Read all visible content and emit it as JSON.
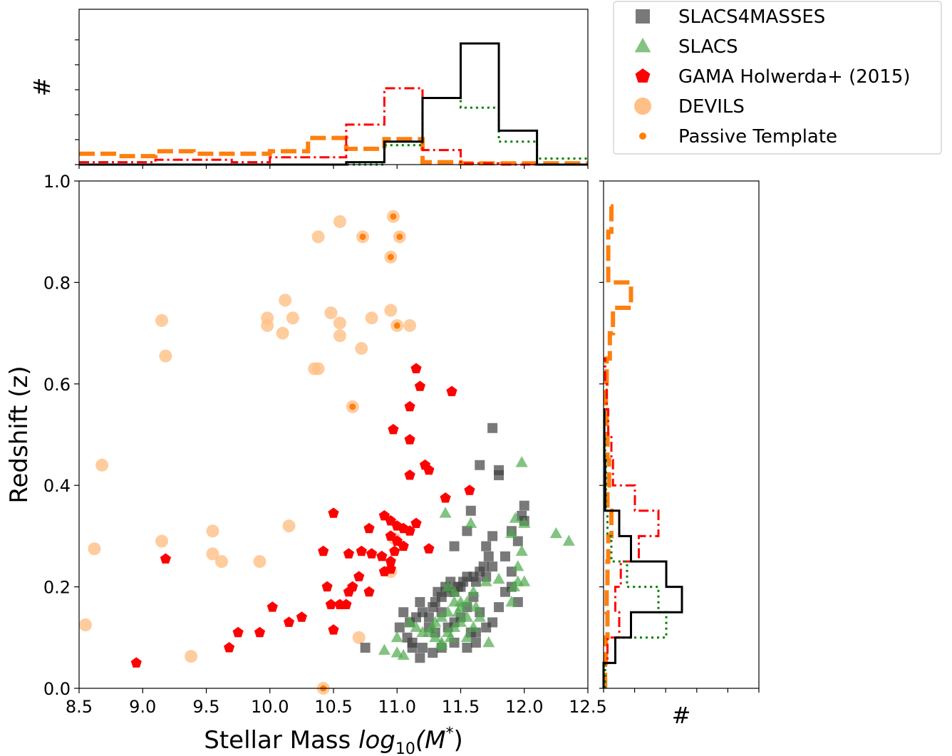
{
  "colors": {
    "slacs4masses": "#404040",
    "slacs": "#4daa4d",
    "gama": "#ff0000",
    "devils": "#ffbf86",
    "passive": "#ff7f0e",
    "hist_black": "#000000",
    "hist_green": "#008000",
    "hist_red": "#ff0000",
    "hist_orange": "#ff7f0e"
  },
  "chart_data": {
    "type": "scatter",
    "xlabel_prefix": "Stellar Mass ",
    "xlabel_math": "log",
    "xlabel_sub": "10",
    "xlabel_arg": "(M",
    "xlabel_sup": "*",
    "xlabel_close": ")",
    "ylabel": "Redshift (z)",
    "top_hist_ylabel": "#",
    "right_hist_xlabel": "#",
    "xlim": [
      8.5,
      12.5
    ],
    "ylim": [
      0.0,
      1.0
    ],
    "xticks": [
      "8.5",
      "9.0",
      "9.5",
      "10.0",
      "10.5",
      "11.0",
      "11.5",
      "12.0",
      "12.5"
    ],
    "yticks": [
      "0.0",
      "0.2",
      "0.4",
      "0.6",
      "0.8",
      "1.0"
    ],
    "legend": {
      "placement": "top-right",
      "entries": [
        "SLACS4MASSES",
        "SLACS",
        "GAMA Holwerda+ (2015)",
        "DEVILS",
        "Passive Template"
      ]
    },
    "series": [
      {
        "name": "SLACS4MASSES",
        "marker": "square",
        "points": [
          [
            11.75,
            0.513
          ],
          [
            11.65,
            0.44
          ],
          [
            11.8,
            0.42
          ],
          [
            11.8,
            0.43
          ],
          [
            12.0,
            0.36
          ],
          [
            11.98,
            0.34
          ],
          [
            12.0,
            0.33
          ],
          [
            11.58,
            0.35
          ],
          [
            11.55,
            0.31
          ],
          [
            11.9,
            0.31
          ],
          [
            11.75,
            0.3
          ],
          [
            11.7,
            0.28
          ],
          [
            11.45,
            0.28
          ],
          [
            11.95,
            0.29
          ],
          [
            11.85,
            0.26
          ],
          [
            11.9,
            0.23
          ],
          [
            11.75,
            0.24
          ],
          [
            11.7,
            0.22
          ],
          [
            11.68,
            0.24
          ],
          [
            11.65,
            0.23
          ],
          [
            11.62,
            0.21
          ],
          [
            11.6,
            0.22
          ],
          [
            11.55,
            0.22
          ],
          [
            11.52,
            0.21
          ],
          [
            11.5,
            0.2
          ],
          [
            11.48,
            0.2
          ],
          [
            11.45,
            0.19
          ],
          [
            11.42,
            0.21
          ],
          [
            11.4,
            0.19
          ],
          [
            11.38,
            0.2
          ],
          [
            11.35,
            0.18
          ],
          [
            11.32,
            0.19
          ],
          [
            11.3,
            0.17
          ],
          [
            11.28,
            0.16
          ],
          [
            11.25,
            0.14
          ],
          [
            11.2,
            0.15
          ],
          [
            11.15,
            0.14
          ],
          [
            11.1,
            0.13
          ],
          [
            11.05,
            0.15
          ],
          [
            11.02,
            0.12
          ],
          [
            11.08,
            0.1
          ],
          [
            11.12,
            0.09
          ],
          [
            11.2,
            0.08
          ],
          [
            11.28,
            0.07
          ],
          [
            11.35,
            0.08
          ],
          [
            11.45,
            0.09
          ],
          [
            11.55,
            0.08
          ],
          [
            11.62,
            0.11
          ],
          [
            11.7,
            0.12
          ],
          [
            11.75,
            0.13
          ],
          [
            11.8,
            0.16
          ],
          [
            11.85,
            0.19
          ],
          [
            11.9,
            0.2
          ],
          [
            11.95,
            0.17
          ],
          [
            11.55,
            0.16
          ],
          [
            11.6,
            0.18
          ],
          [
            11.65,
            0.15
          ],
          [
            11.5,
            0.14
          ],
          [
            11.45,
            0.13
          ],
          [
            11.4,
            0.12
          ],
          [
            11.35,
            0.15
          ],
          [
            11.3,
            0.11
          ],
          [
            11.25,
            0.12
          ],
          [
            11.18,
            0.17
          ],
          [
            11.12,
            0.08
          ],
          [
            11.18,
            0.06
          ],
          [
            10.75,
            0.08
          ],
          [
            11.72,
            0.26
          ],
          [
            11.62,
            0.09
          ],
          [
            11.58,
            0.11
          ]
        ]
      },
      {
        "name": "SLACS",
        "marker": "triangle",
        "points": [
          [
            11.98,
            0.445
          ],
          [
            11.38,
            0.345
          ],
          [
            11.58,
            0.325
          ],
          [
            11.93,
            0.335
          ],
          [
            12.0,
            0.325
          ],
          [
            12.25,
            0.305
          ],
          [
            12.35,
            0.29
          ],
          [
            11.9,
            0.305
          ],
          [
            11.98,
            0.27
          ],
          [
            11.95,
            0.24
          ],
          [
            11.95,
            0.21
          ],
          [
            12.0,
            0.21
          ],
          [
            11.92,
            0.2
          ],
          [
            11.9,
            0.17
          ],
          [
            11.8,
            0.215
          ],
          [
            11.7,
            0.21
          ],
          [
            11.6,
            0.19
          ],
          [
            11.55,
            0.17
          ],
          [
            11.5,
            0.16
          ],
          [
            11.48,
            0.15
          ],
          [
            11.45,
            0.17
          ],
          [
            11.4,
            0.15
          ],
          [
            11.35,
            0.14
          ],
          [
            11.3,
            0.13
          ],
          [
            11.28,
            0.12
          ],
          [
            11.25,
            0.11
          ],
          [
            11.3,
            0.1
          ],
          [
            11.35,
            0.09
          ],
          [
            11.4,
            0.11
          ],
          [
            11.45,
            0.12
          ],
          [
            11.5,
            0.13
          ],
          [
            11.55,
            0.14
          ],
          [
            11.6,
            0.12
          ],
          [
            11.65,
            0.14
          ],
          [
            11.2,
            0.11
          ],
          [
            11.15,
            0.12
          ],
          [
            11.1,
            0.13
          ],
          [
            11.0,
            0.1
          ],
          [
            10.9,
            0.075
          ],
          [
            11.0,
            0.07
          ],
          [
            11.05,
            0.065
          ],
          [
            11.35,
            0.085
          ],
          [
            11.42,
            0.1
          ],
          [
            11.55,
            0.1
          ],
          [
            11.72,
            0.09
          ],
          [
            11.5,
            0.17
          ],
          [
            11.45,
            0.19
          ],
          [
            11.4,
            0.2
          ],
          [
            11.62,
            0.16
          ]
        ]
      },
      {
        "name": "GAMA Holwerda+ (2015)",
        "marker": "pentagon",
        "points": [
          [
            11.15,
            0.63
          ],
          [
            11.18,
            0.595
          ],
          [
            11.43,
            0.585
          ],
          [
            11.1,
            0.555
          ],
          [
            10.97,
            0.51
          ],
          [
            11.1,
            0.49
          ],
          [
            11.22,
            0.44
          ],
          [
            11.25,
            0.43
          ],
          [
            11.1,
            0.42
          ],
          [
            11.57,
            0.39
          ],
          [
            11.38,
            0.375
          ],
          [
            10.5,
            0.345
          ],
          [
            10.9,
            0.34
          ],
          [
            10.95,
            0.33
          ],
          [
            11.15,
            0.325
          ],
          [
            11.0,
            0.32
          ],
          [
            11.05,
            0.315
          ],
          [
            10.78,
            0.315
          ],
          [
            10.95,
            0.3
          ],
          [
            11.1,
            0.31
          ],
          [
            11.0,
            0.29
          ],
          [
            11.05,
            0.28
          ],
          [
            10.98,
            0.27
          ],
          [
            10.62,
            0.265
          ],
          [
            10.72,
            0.27
          ],
          [
            10.8,
            0.265
          ],
          [
            10.42,
            0.27
          ],
          [
            10.88,
            0.26
          ],
          [
            11.25,
            0.275
          ],
          [
            10.95,
            0.25
          ],
          [
            10.9,
            0.23
          ],
          [
            10.7,
            0.22
          ],
          [
            10.65,
            0.2
          ],
          [
            10.62,
            0.19
          ],
          [
            10.78,
            0.19
          ],
          [
            10.45,
            0.2
          ],
          [
            10.55,
            0.165
          ],
          [
            10.48,
            0.165
          ],
          [
            10.6,
            0.165
          ],
          [
            10.02,
            0.16
          ],
          [
            10.25,
            0.14
          ],
          [
            10.15,
            0.13
          ],
          [
            10.5,
            0.115
          ],
          [
            9.92,
            0.11
          ],
          [
            9.75,
            0.11
          ],
          [
            9.68,
            0.08
          ],
          [
            8.95,
            0.05
          ],
          [
            9.18,
            0.255
          ],
          [
            10.95,
            0.235
          ]
        ]
      },
      {
        "name": "DEVILS",
        "marker": "circle",
        "points": [
          [
            10.97,
            0.93
          ],
          [
            10.55,
            0.92
          ],
          [
            10.73,
            0.89
          ],
          [
            11.02,
            0.89
          ],
          [
            10.38,
            0.89
          ],
          [
            10.95,
            0.85
          ],
          [
            10.12,
            0.765
          ],
          [
            10.95,
            0.745
          ],
          [
            9.98,
            0.73
          ],
          [
            10.18,
            0.73
          ],
          [
            10.48,
            0.74
          ],
          [
            10.8,
            0.73
          ],
          [
            9.15,
            0.725
          ],
          [
            10.55,
            0.72
          ],
          [
            9.98,
            0.715
          ],
          [
            11.0,
            0.715
          ],
          [
            11.1,
            0.715
          ],
          [
            10.1,
            0.7
          ],
          [
            10.55,
            0.695
          ],
          [
            10.72,
            0.67
          ],
          [
            9.18,
            0.655
          ],
          [
            10.35,
            0.63
          ],
          [
            10.38,
            0.63
          ],
          [
            10.65,
            0.555
          ],
          [
            8.68,
            0.44
          ],
          [
            10.15,
            0.32
          ],
          [
            9.55,
            0.31
          ],
          [
            9.15,
            0.29
          ],
          [
            10.98,
            0.295
          ],
          [
            8.62,
            0.275
          ],
          [
            9.55,
            0.265
          ],
          [
            9.62,
            0.25
          ],
          [
            9.92,
            0.25
          ],
          [
            10.95,
            0.23
          ],
          [
            10.7,
            0.1
          ],
          [
            8.55,
            0.125
          ],
          [
            9.38,
            0.063
          ],
          [
            10.42,
            0.0
          ]
        ]
      },
      {
        "name": "Passive Template",
        "marker": "dot",
        "points": [
          [
            10.97,
            0.93
          ],
          [
            10.73,
            0.89
          ],
          [
            11.02,
            0.89
          ],
          [
            10.95,
            0.85
          ],
          [
            11.0,
            0.715
          ],
          [
            10.65,
            0.555
          ],
          [
            10.42,
            0.0
          ]
        ]
      }
    ],
    "top_histograms": [
      {
        "series": "SLACS4MASSES",
        "style": "solid",
        "edges": [
          8.5,
          8.8,
          9.1,
          9.4,
          9.7,
          10.0,
          10.3,
          10.6,
          10.9,
          11.2,
          11.5,
          11.8,
          12.1,
          12.5
        ],
        "counts": [
          0,
          0,
          0,
          0,
          0,
          0,
          0,
          0.02,
          0.19,
          0.55,
          1.0,
          0.28,
          0,
          0
        ]
      },
      {
        "series": "SLACS",
        "style": "dotted",
        "edges": [
          8.5,
          8.8,
          9.1,
          9.4,
          9.7,
          10.0,
          10.3,
          10.6,
          10.9,
          11.2,
          11.5,
          11.8,
          12.1,
          12.5
        ],
        "counts": [
          0,
          0,
          0,
          0,
          0,
          0,
          0,
          0,
          0.16,
          0.55,
          0.47,
          0.19,
          0.05,
          0.05
        ]
      },
      {
        "series": "GAMA Holwerda+ (2015)",
        "style": "dashdot",
        "edges": [
          8.5,
          8.8,
          9.1,
          9.4,
          9.7,
          10.0,
          10.3,
          10.6,
          10.9,
          11.2,
          11.5,
          11.8,
          12.1,
          12.5
        ],
        "counts": [
          0.02,
          0.02,
          0.04,
          0.04,
          0.02,
          0.06,
          0.06,
          0.33,
          0.63,
          0.12,
          0.01,
          0,
          0,
          0
        ]
      },
      {
        "series": "DEVILS",
        "style": "dashed",
        "edges": [
          8.5,
          8.8,
          9.1,
          9.4,
          9.7,
          10.0,
          10.3,
          10.6,
          10.9,
          11.2,
          11.5,
          11.8,
          12.1,
          12.5
        ],
        "counts": [
          0.09,
          0.07,
          0.11,
          0.09,
          0.09,
          0.11,
          0.22,
          0.13,
          0.21,
          0.02,
          0.01,
          0.01,
          0.01,
          0.01
        ]
      }
    ],
    "right_histograms": [
      {
        "series": "SLACS4MASSES",
        "style": "solid",
        "edges": [
          0.0,
          0.05,
          0.1,
          0.15,
          0.2,
          0.25,
          0.3,
          0.35,
          0.4,
          0.45,
          0.5,
          0.55
        ],
        "counts": [
          0,
          0.15,
          0.35,
          1.0,
          0.8,
          0.35,
          0.2,
          0.02,
          0.02,
          0.01,
          0.01,
          0
        ]
      },
      {
        "series": "SLACS",
        "style": "dotted",
        "edges": [
          0.0,
          0.05,
          0.1,
          0.15,
          0.2,
          0.25,
          0.3,
          0.35,
          0.4,
          0.45,
          0.5
        ],
        "counts": [
          0.02,
          0.15,
          0.8,
          0.7,
          0.3,
          0.1,
          0.05,
          0.03,
          0.03,
          0.02,
          0
        ]
      },
      {
        "series": "GAMA Holwerda+ (2015)",
        "style": "dashdot",
        "edges": [
          0.0,
          0.05,
          0.1,
          0.15,
          0.2,
          0.25,
          0.3,
          0.35,
          0.4,
          0.45,
          0.5,
          0.55,
          0.6,
          0.65
        ],
        "counts": [
          0,
          0.05,
          0.2,
          0.15,
          0.22,
          0.45,
          0.7,
          0.4,
          0.12,
          0.1,
          0.06,
          0.04,
          0.02,
          0
        ]
      },
      {
        "series": "DEVILS",
        "style": "dashed",
        "edges": [
          0.0,
          0.05,
          0.1,
          0.15,
          0.2,
          0.25,
          0.3,
          0.35,
          0.4,
          0.45,
          0.5,
          0.55,
          0.6,
          0.65,
          0.7,
          0.75,
          0.8,
          0.85,
          0.9,
          0.95
        ],
        "counts": [
          0.02,
          0.03,
          0.05,
          0.04,
          0.05,
          0.06,
          0.1,
          0.05,
          0.07,
          0.05,
          0.04,
          0.03,
          0.04,
          0.08,
          0.12,
          0.35,
          0.06,
          0.06,
          0.1,
          0.04
        ]
      }
    ]
  }
}
